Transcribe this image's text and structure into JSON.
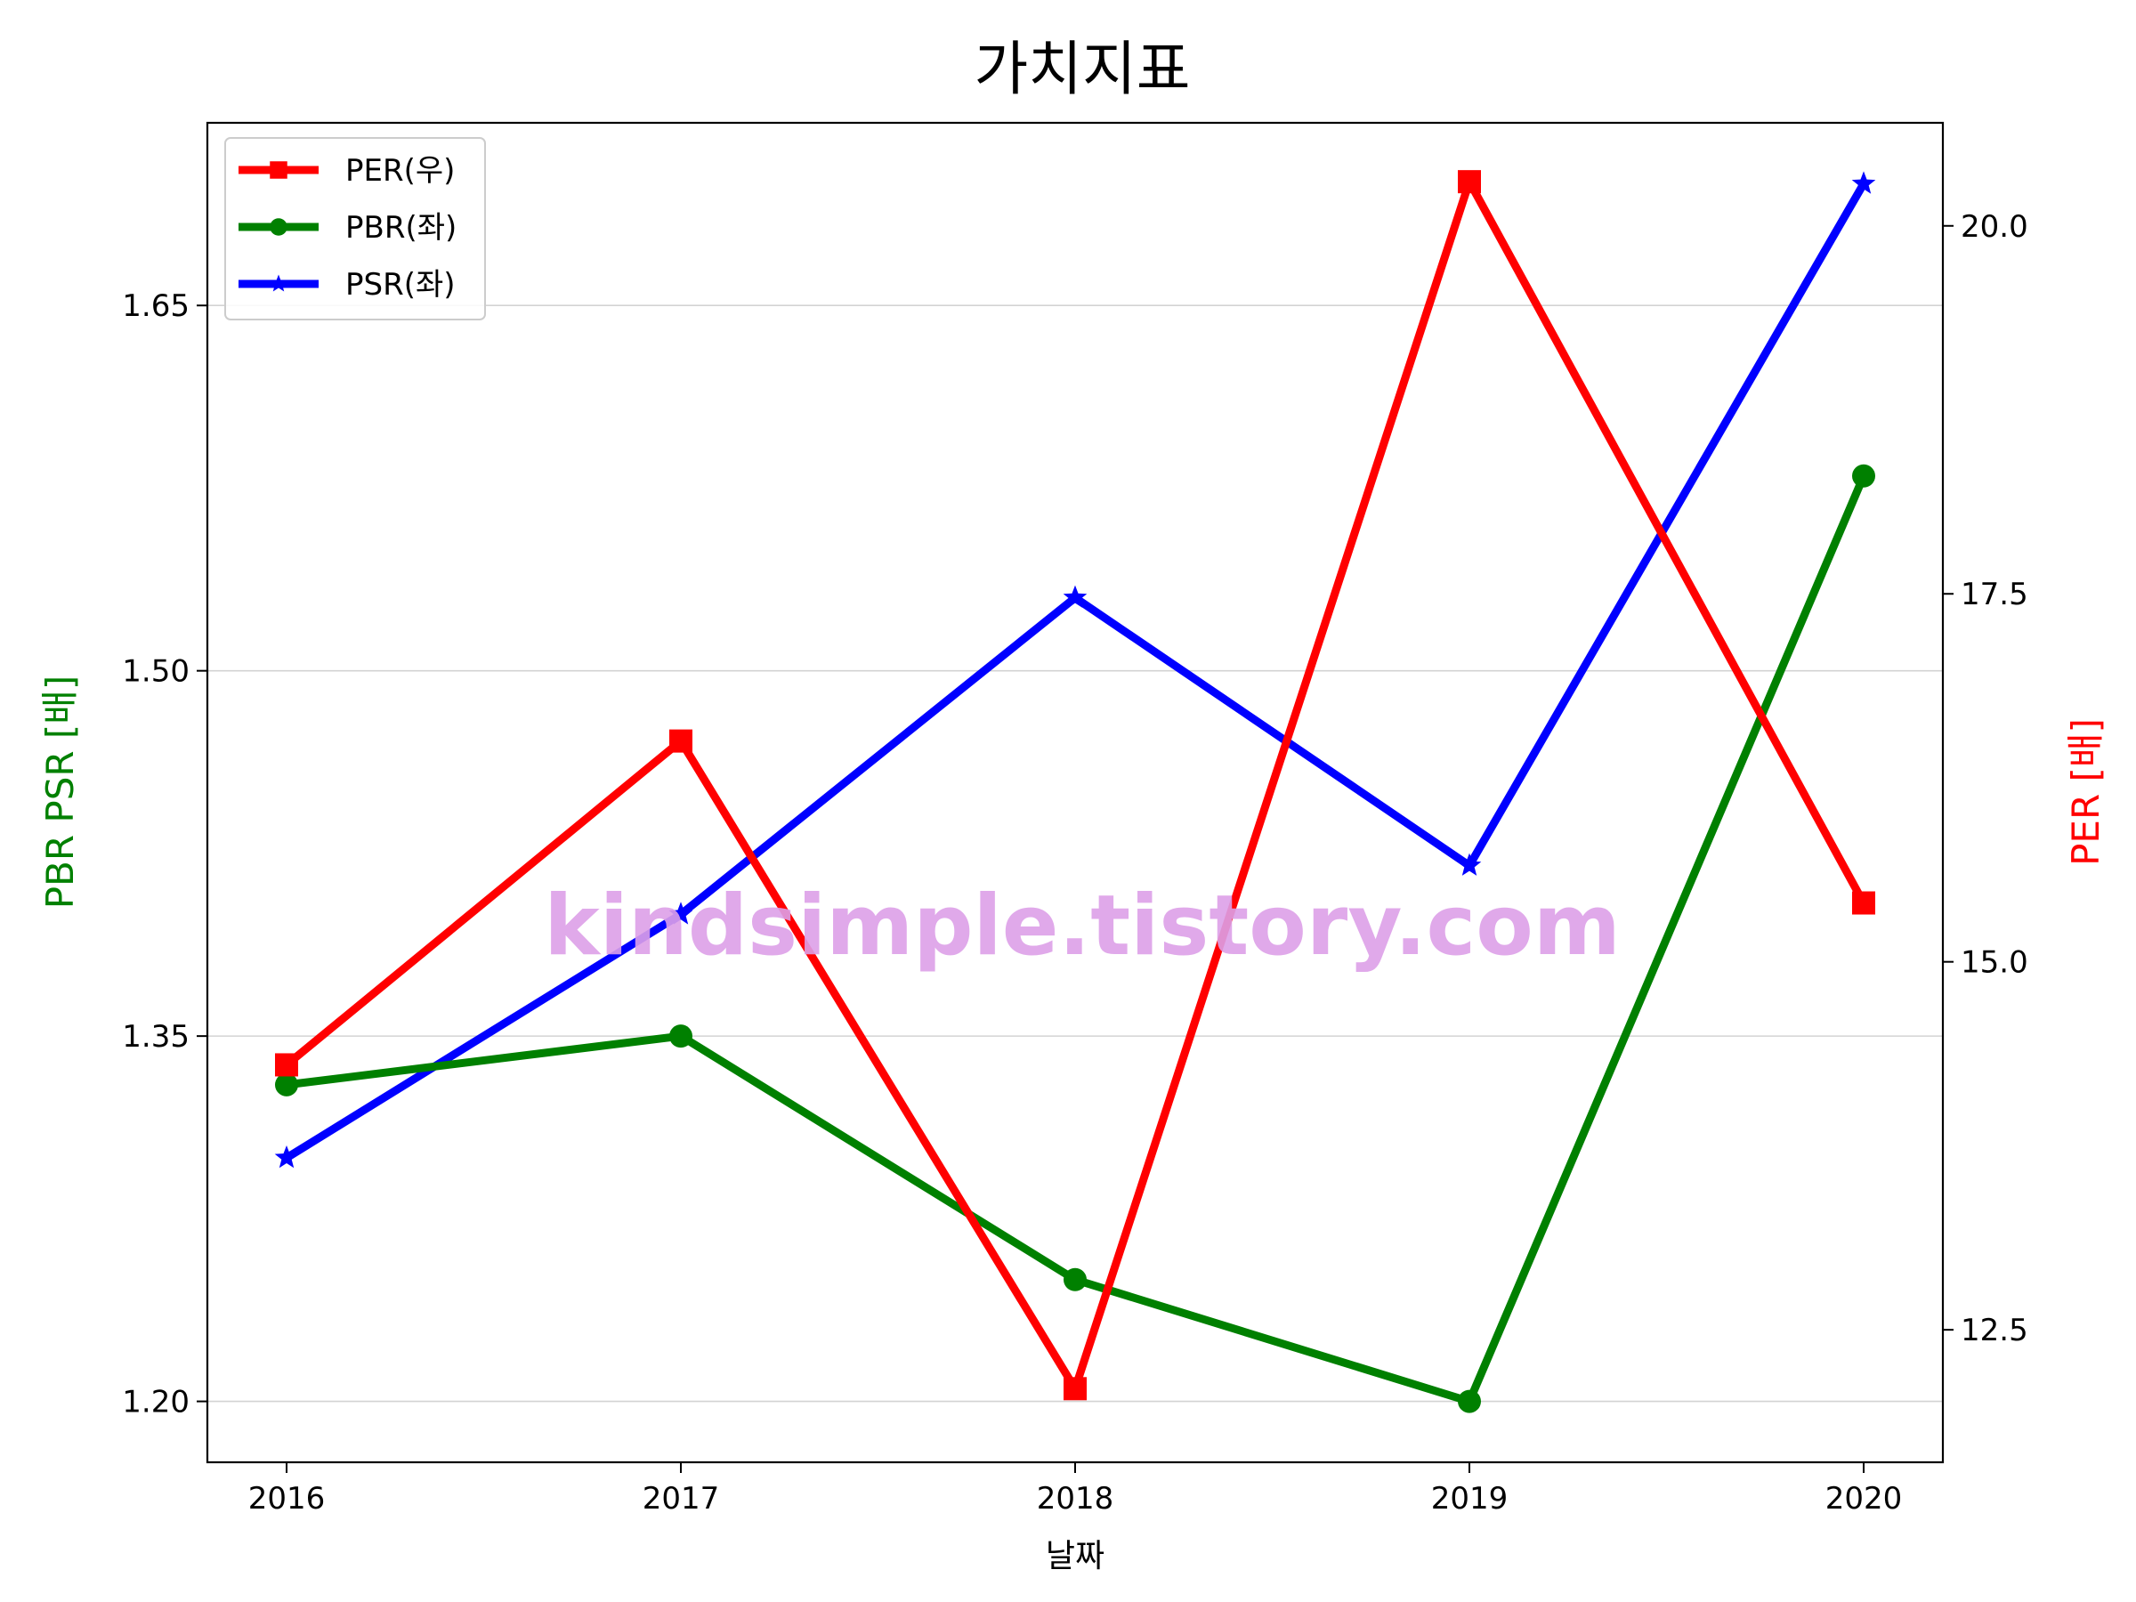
{
  "chart_data": {
    "type": "line",
    "title": "가치지표",
    "xlabel": "날짜",
    "ylabel_left": "PBR PSR [배]",
    "ylabel_right": "PER [배]",
    "categories": [
      "2016",
      "2017",
      "2018",
      "2019",
      "2020"
    ],
    "left_axis": {
      "ylim": [
        1.175,
        1.725
      ],
      "ticks": [
        "1.20",
        "1.35",
        "1.50",
        "1.65"
      ],
      "grid": true
    },
    "right_axis": {
      "ylim": [
        11.6,
        20.7
      ],
      "ticks": [
        "12.5",
        "15.0",
        "17.5",
        "20.0"
      ]
    },
    "series": [
      {
        "name": "PER(우)",
        "axis": "right",
        "marker": "square",
        "color": "#ff0000",
        "values": [
          14.3,
          16.5,
          12.1,
          20.3,
          15.4
        ]
      },
      {
        "name": "PBR(좌)",
        "axis": "left",
        "marker": "circle",
        "color": "#008000",
        "values": [
          1.33,
          1.35,
          1.25,
          1.2,
          1.58
        ]
      },
      {
        "name": "PSR(좌)",
        "axis": "left",
        "marker": "star",
        "color": "#0000ff",
        "values": [
          1.3,
          1.4,
          1.53,
          1.42,
          1.7
        ]
      }
    ],
    "legend": "top-left",
    "watermark": "kindsimple.tistory.com"
  }
}
